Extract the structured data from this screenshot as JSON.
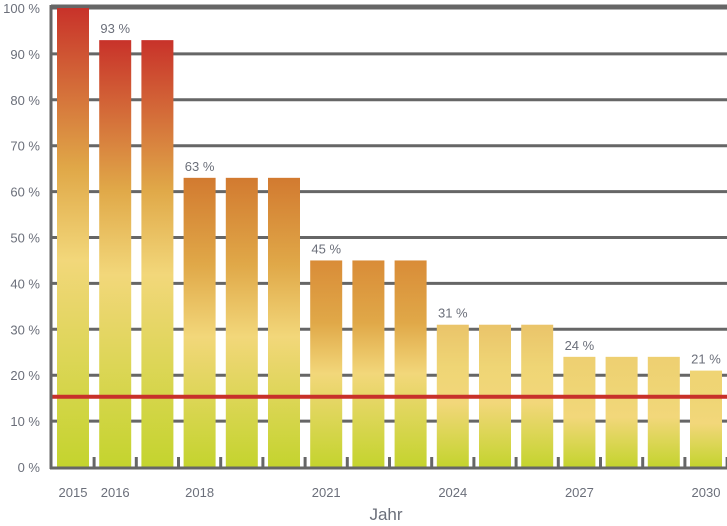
{
  "chart_data": {
    "type": "bar",
    "categories": [
      "2015",
      "2016",
      "2017",
      "2018",
      "2019",
      "2020",
      "2021",
      "2022",
      "2023",
      "2024",
      "2025",
      "2026",
      "2027",
      "2028",
      "2029",
      "2030"
    ],
    "values": [
      100,
      93,
      93,
      63,
      63,
      63,
      45,
      45,
      45,
      31,
      31,
      31,
      24,
      24,
      24,
      21
    ],
    "data_labels": [
      "",
      "93 %",
      "",
      "63 %",
      "",
      "",
      "45 %",
      "",
      "",
      "31 %",
      "",
      "",
      "24 %",
      "",
      "",
      "21 %"
    ],
    "x_tick_labels": [
      "2015",
      "2016",
      "",
      "2018",
      "",
      "",
      "2021",
      "",
      "",
      "2024",
      "",
      "",
      "2027",
      "",
      "",
      "2030"
    ],
    "y_tick_labels": [
      "0 %",
      "10 %",
      "20 %",
      "30 %",
      "40 %",
      "50 %",
      "60 %",
      "70 %",
      "80 %",
      "90 %",
      "100 %"
    ],
    "xlabel": "Jahr",
    "ylabel": "",
    "ylim": [
      0,
      100
    ],
    "grid": true,
    "reference_line": {
      "value": 15.3,
      "color": "#c8302a"
    },
    "colors": {
      "top": "#c8302a",
      "middle": "#f2d77a",
      "bottom": "#c4d42e",
      "grid": "#666666"
    }
  }
}
